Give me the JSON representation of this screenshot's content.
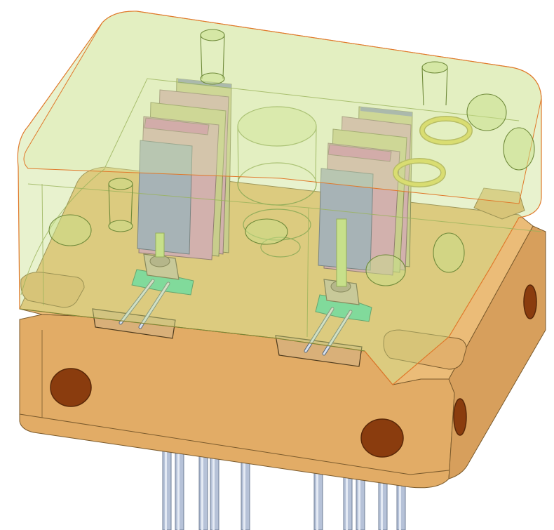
{
  "scene": {
    "subject": "cad-render-transparent-mold-assembly",
    "colors": {
      "background": "#ffffff",
      "base_body": "#e2ac66",
      "base_top": "#eab971",
      "base_shadow": "#c8914f",
      "base_edge": "#7a5a2c",
      "cover_fill": "#c7e08a",
      "cover_edge": "#e0782a",
      "cover_ghost": "#a9c96b",
      "blind_hole": "#8a3c0e",
      "pin": "#b6c2d8",
      "pin_edge": "#6f7d96",
      "slide_blue": "#8f93d6",
      "slide_pink": "#d990c7",
      "slide_magenta": "#d34fbf",
      "slide_tan": "#c9c08d",
      "oring": "#e5cf2c",
      "sensor_body": "#c8b8a4",
      "sensor_pad": "#4fd6a8"
    },
    "icons": {
      "o_ring": "o-ring-icon",
      "pin": "ejector-pin-icon",
      "hole": "blind-hole-icon"
    }
  }
}
